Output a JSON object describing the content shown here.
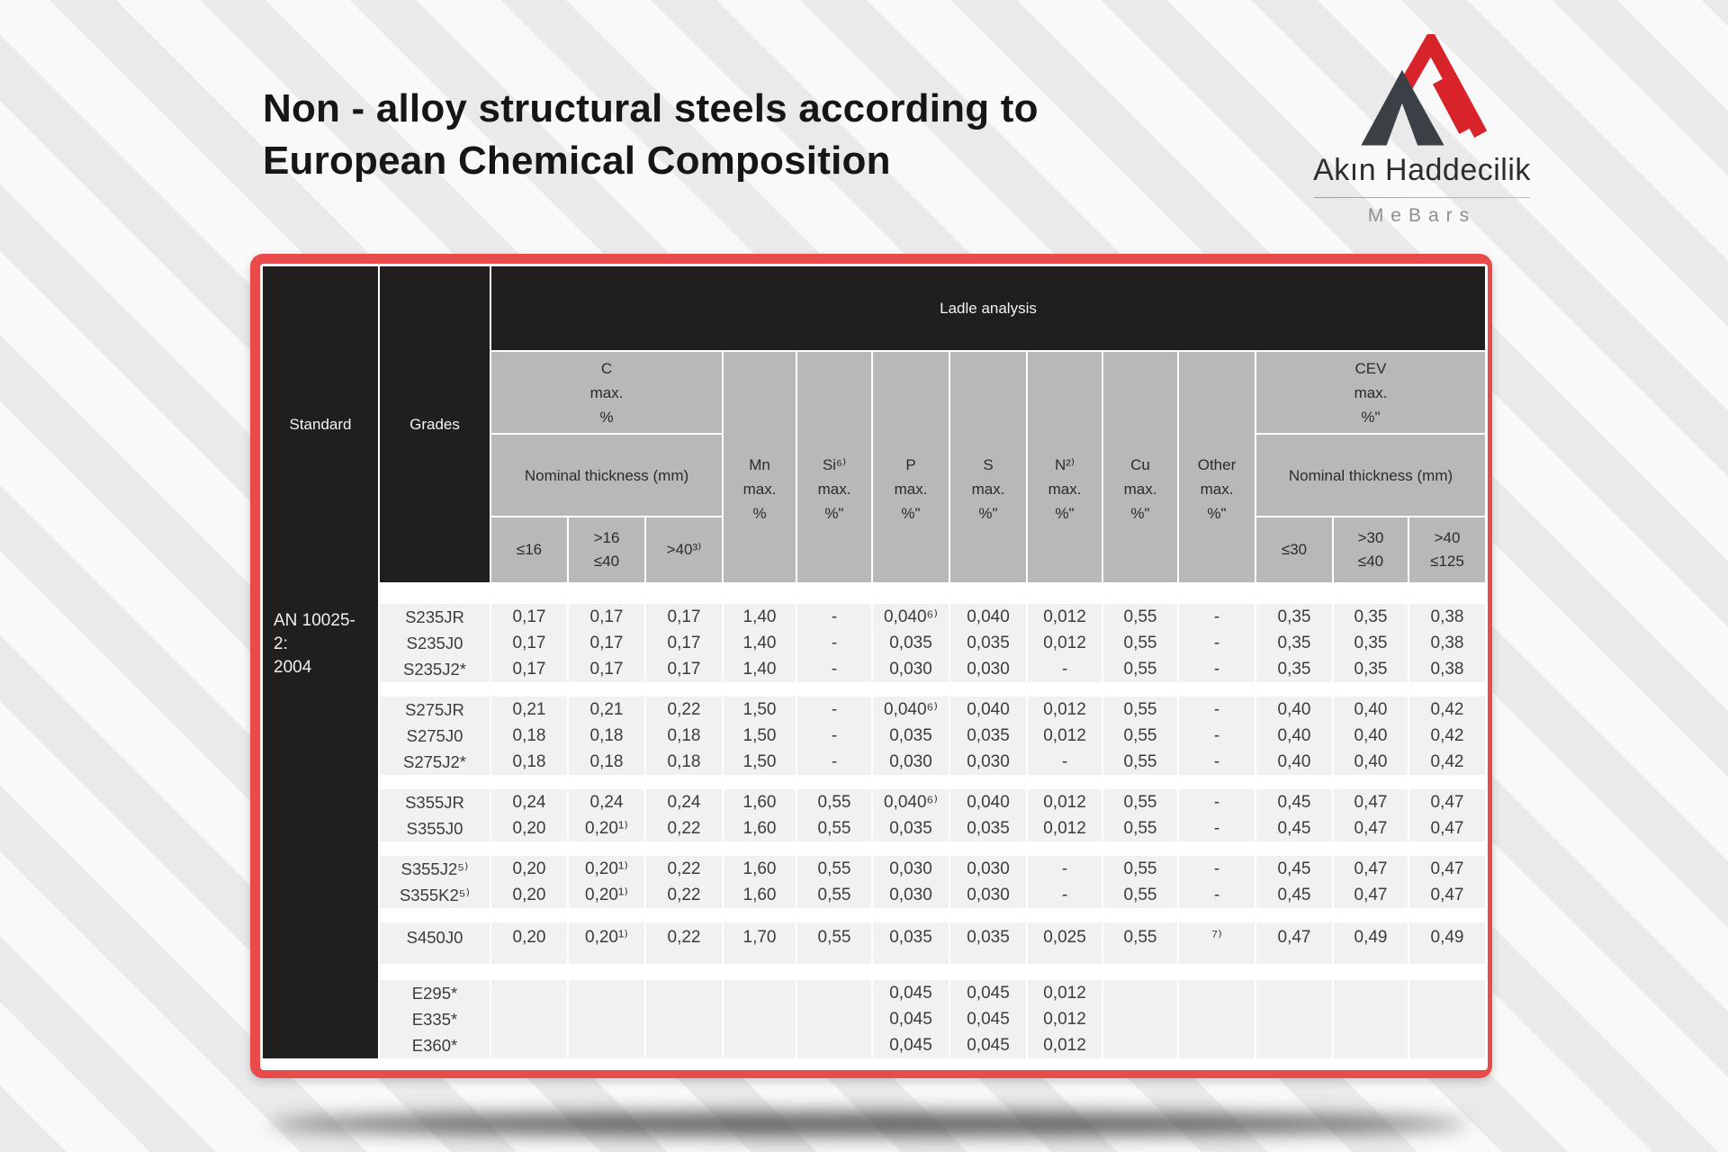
{
  "title": {
    "line1": "Non - alloy structural steels according to",
    "line2": "European Chemical Composition"
  },
  "logo": {
    "company": "Akın Haddecilik",
    "brand": "MeBars"
  },
  "colors": {
    "accent_red": "#E94B4B",
    "header_black": "#201F1E",
    "header_gray": "#B9B8B6",
    "body_cell": "#F2F1EF",
    "logo_red": "#D8232A",
    "logo_gray": "#3A4046"
  },
  "table": {
    "standard_header": "Standard",
    "grades_header": "Grades",
    "ladle_header": "Ladle analysis",
    "standard_value": "AN 10025-2:\n2004",
    "c_group": {
      "title": "C\nmax.\n%",
      "nominal": "Nominal thickness (mm)",
      "subcols": [
        "≤16",
        ">16\n≤40",
        ">40³⁾"
      ]
    },
    "element_cols": [
      {
        "title": "Mn\nmax.\n%"
      },
      {
        "title": "Si⁶⁾\nmax.\n%\""
      },
      {
        "title": "P\nmax.\n%\""
      },
      {
        "title": "S\nmax.\n%\""
      },
      {
        "title": "N²⁾\nmax.\n%\""
      },
      {
        "title": "Cu\nmax.\n%\""
      },
      {
        "title": "Other\nmax.\n%\""
      }
    ],
    "cev_group": {
      "title": "CEV\nmax.\n%\"",
      "nominal": "Nominal thickness (mm)",
      "subcols": [
        "≤30",
        ">30\n≤40",
        ">40\n≤125"
      ]
    },
    "groups": [
      {
        "rows": [
          {
            "grade": "S235JR",
            "cells": [
              "0,17",
              "0,17",
              "0,17",
              "1,40",
              "-",
              "0,040⁶⁾",
              "0,040",
              "0,012",
              "0,55",
              "-",
              "0,35",
              "0,35",
              "0,38"
            ]
          },
          {
            "grade": "S235J0",
            "cells": [
              "0,17",
              "0,17",
              "0,17",
              "1,40",
              "-",
              "0,035",
              "0,035",
              "0,012",
              "0,55",
              "-",
              "0,35",
              "0,35",
              "0,38"
            ]
          },
          {
            "grade": "S235J2*",
            "cells": [
              "0,17",
              "0,17",
              "0,17",
              "1,40",
              "-",
              "0,030",
              "0,030",
              "-",
              "0,55",
              "-",
              "0,35",
              "0,35",
              "0,38"
            ]
          }
        ]
      },
      {
        "rows": [
          {
            "grade": "S275JR",
            "cells": [
              "0,21",
              "0,21",
              "0,22",
              "1,50",
              "-",
              "0,040⁶⁾",
              "0,040",
              "0,012",
              "0,55",
              "-",
              "0,40",
              "0,40",
              "0,42"
            ]
          },
          {
            "grade": "S275J0",
            "cells": [
              "0,18",
              "0,18",
              "0,18",
              "1,50",
              "-",
              "0,035",
              "0,035",
              "0,012",
              "0,55",
              "-",
              "0,40",
              "0,40",
              "0,42"
            ]
          },
          {
            "grade": "S275J2*",
            "cells": [
              "0,18",
              "0,18",
              "0,18",
              "1,50",
              "-",
              "0,030",
              "0,030",
              "-",
              "0,55",
              "-",
              "0,40",
              "0,40",
              "0,42"
            ]
          }
        ]
      },
      {
        "rows": [
          {
            "grade": "S355JR",
            "cells": [
              "0,24",
              "0,24",
              "0,24",
              "1,60",
              "0,55",
              "0,040⁶⁾",
              "0,040",
              "0,012",
              "0,55",
              "-",
              "0,45",
              "0,47",
              "0,47"
            ]
          },
          {
            "grade": "S355J0",
            "cells": [
              "0,20",
              "0,20¹⁾",
              "0,22",
              "1,60",
              "0,55",
              "0,035",
              "0,035",
              "0,012",
              "0,55",
              "-",
              "0,45",
              "0,47",
              "0,47"
            ]
          }
        ]
      },
      {
        "rows": [
          {
            "grade": "S355J2⁵⁾",
            "cells": [
              "0,20",
              "0,20¹⁾",
              "0,22",
              "1,60",
              "0,55",
              "0,030",
              "0,030",
              "-",
              "0,55",
              "-",
              "0,45",
              "0,47",
              "0,47"
            ]
          },
          {
            "grade": "S355K2⁵⁾",
            "cells": [
              "0,20",
              "0,20¹⁾",
              "0,22",
              "1,60",
              "0,55",
              "0,030",
              "0,030",
              "-",
              "0,55",
              "-",
              "0,45",
              "0,47",
              "0,47"
            ]
          }
        ]
      },
      {
        "rows": [
          {
            "grade": "S450J0",
            "cells": [
              "0,20",
              "0,20¹⁾",
              "0,22",
              "1,70",
              "0,55",
              "0,035",
              "0,035",
              "0,025",
              "0,55",
              "⁷⁾",
              "0,47",
              "0,49",
              "0,49"
            ]
          }
        ]
      },
      {
        "rows": [
          {
            "grade": "E295*",
            "cells": [
              "",
              "",
              "",
              "",
              "",
              "0,045",
              "0,045",
              "0,012",
              "",
              "",
              "",
              "",
              ""
            ]
          },
          {
            "grade": "E335*",
            "cells": [
              "",
              "",
              "",
              "",
              "",
              "0,045",
              "0,045",
              "0,012",
              "",
              "",
              "",
              "",
              ""
            ]
          },
          {
            "grade": "E360*",
            "cells": [
              "",
              "",
              "",
              "",
              "",
              "0,045",
              "0,045",
              "0,012",
              "",
              "",
              "",
              "",
              ""
            ]
          }
        ]
      }
    ]
  }
}
